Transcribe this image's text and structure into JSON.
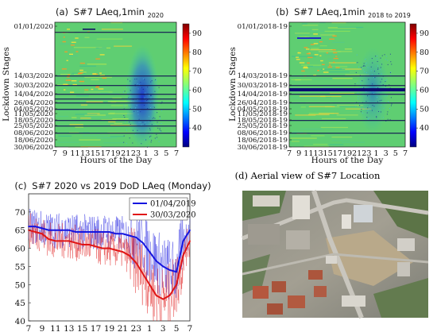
{
  "chart_data": [
    {
      "type": "heatmap",
      "panel": "(a)",
      "title": "S#7 LAeq,1min",
      "title_subscript": "2020",
      "xlabel": "Hours of the Day",
      "ylabel": "Lockdown Stages",
      "x_ticks": [
        "7",
        "9",
        "11",
        "13",
        "15",
        "17",
        "19",
        "21",
        "23",
        "1",
        "3",
        "5",
        "7"
      ],
      "y_ticks": [
        "01/01/2020",
        "14/03/2020",
        "30/03/2020",
        "14/04/2020",
        "26/04/2020",
        "04/05/2020",
        "11/05/2020",
        "18/05/2020",
        "25/05/2020",
        "08/06/2020",
        "18/06/2020",
        "30/06/2020"
      ],
      "colorbar": {
        "range": [
          30,
          95
        ],
        "ticks": [
          40,
          50,
          60,
          70,
          80,
          90
        ]
      }
    },
    {
      "type": "heatmap",
      "panel": "(b)",
      "title": "S#7 LAeq,1min",
      "title_subscript": "2018 to 2019",
      "xlabel": "Hours of the Day",
      "ylabel": "Lockdown Stages",
      "x_ticks": [
        "7",
        "9",
        "11",
        "13",
        "15",
        "17",
        "19",
        "21",
        "23",
        "1",
        "3",
        "5",
        "7"
      ],
      "y_ticks": [
        "01/01/2018-19",
        "14/03/2018-19",
        "30/03/2018-19",
        "14/04/2018-19",
        "26/04/2018-19",
        "04/05/2018-19",
        "11/05/2018-19",
        "18/05/2018-19",
        "25/05/2018-19",
        "08/06/2018-19",
        "18/06/2018-19",
        "30/06/2018-19"
      ],
      "colorbar": {
        "range": [
          30,
          95
        ],
        "ticks": [
          40,
          50,
          60,
          70,
          80,
          90
        ]
      }
    },
    {
      "type": "line",
      "panel": "(c)",
      "title": "S#7 2020 vs 2019 DoD LAeq (Monday)",
      "x_ticks": [
        "7",
        "9",
        "11",
        "13",
        "15",
        "17",
        "19",
        "21",
        "23",
        "1",
        "3",
        "5",
        "7"
      ],
      "ylim": [
        40,
        75
      ],
      "y_ticks": [
        40,
        45,
        50,
        55,
        60,
        65,
        70
      ],
      "legend_position": "top-right",
      "hour_index": [
        0,
        1,
        2,
        3,
        4,
        5,
        6,
        7,
        8,
        9,
        10,
        11,
        12,
        13,
        14,
        15,
        16,
        17,
        18,
        19,
        20,
        21,
        22,
        23,
        24
      ],
      "series": [
        {
          "name": "01/04/2019",
          "color": "#1515e0",
          "values": [
            66,
            66,
            65.5,
            65,
            65,
            65,
            65,
            64.5,
            64.5,
            64.5,
            64.5,
            64.5,
            64.5,
            64,
            64,
            63.5,
            63,
            61.5,
            59,
            56.5,
            55,
            54,
            53.5,
            62,
            65
          ]
        },
        {
          "name": "30/03/2020",
          "color": "#e01515",
          "values": [
            65,
            64.5,
            64,
            62.5,
            62,
            62,
            62,
            61.5,
            61,
            61,
            60.5,
            60,
            60,
            59.5,
            59,
            58,
            56,
            53,
            50,
            47,
            46,
            47,
            50,
            58,
            62
          ]
        }
      ]
    }
  ],
  "aerial_caption": "(d) Aerial view of S#7 Location",
  "colors": {
    "heatmap_base": "#5fce72",
    "low": "#1a1aa8",
    "high": "#cc2222"
  }
}
